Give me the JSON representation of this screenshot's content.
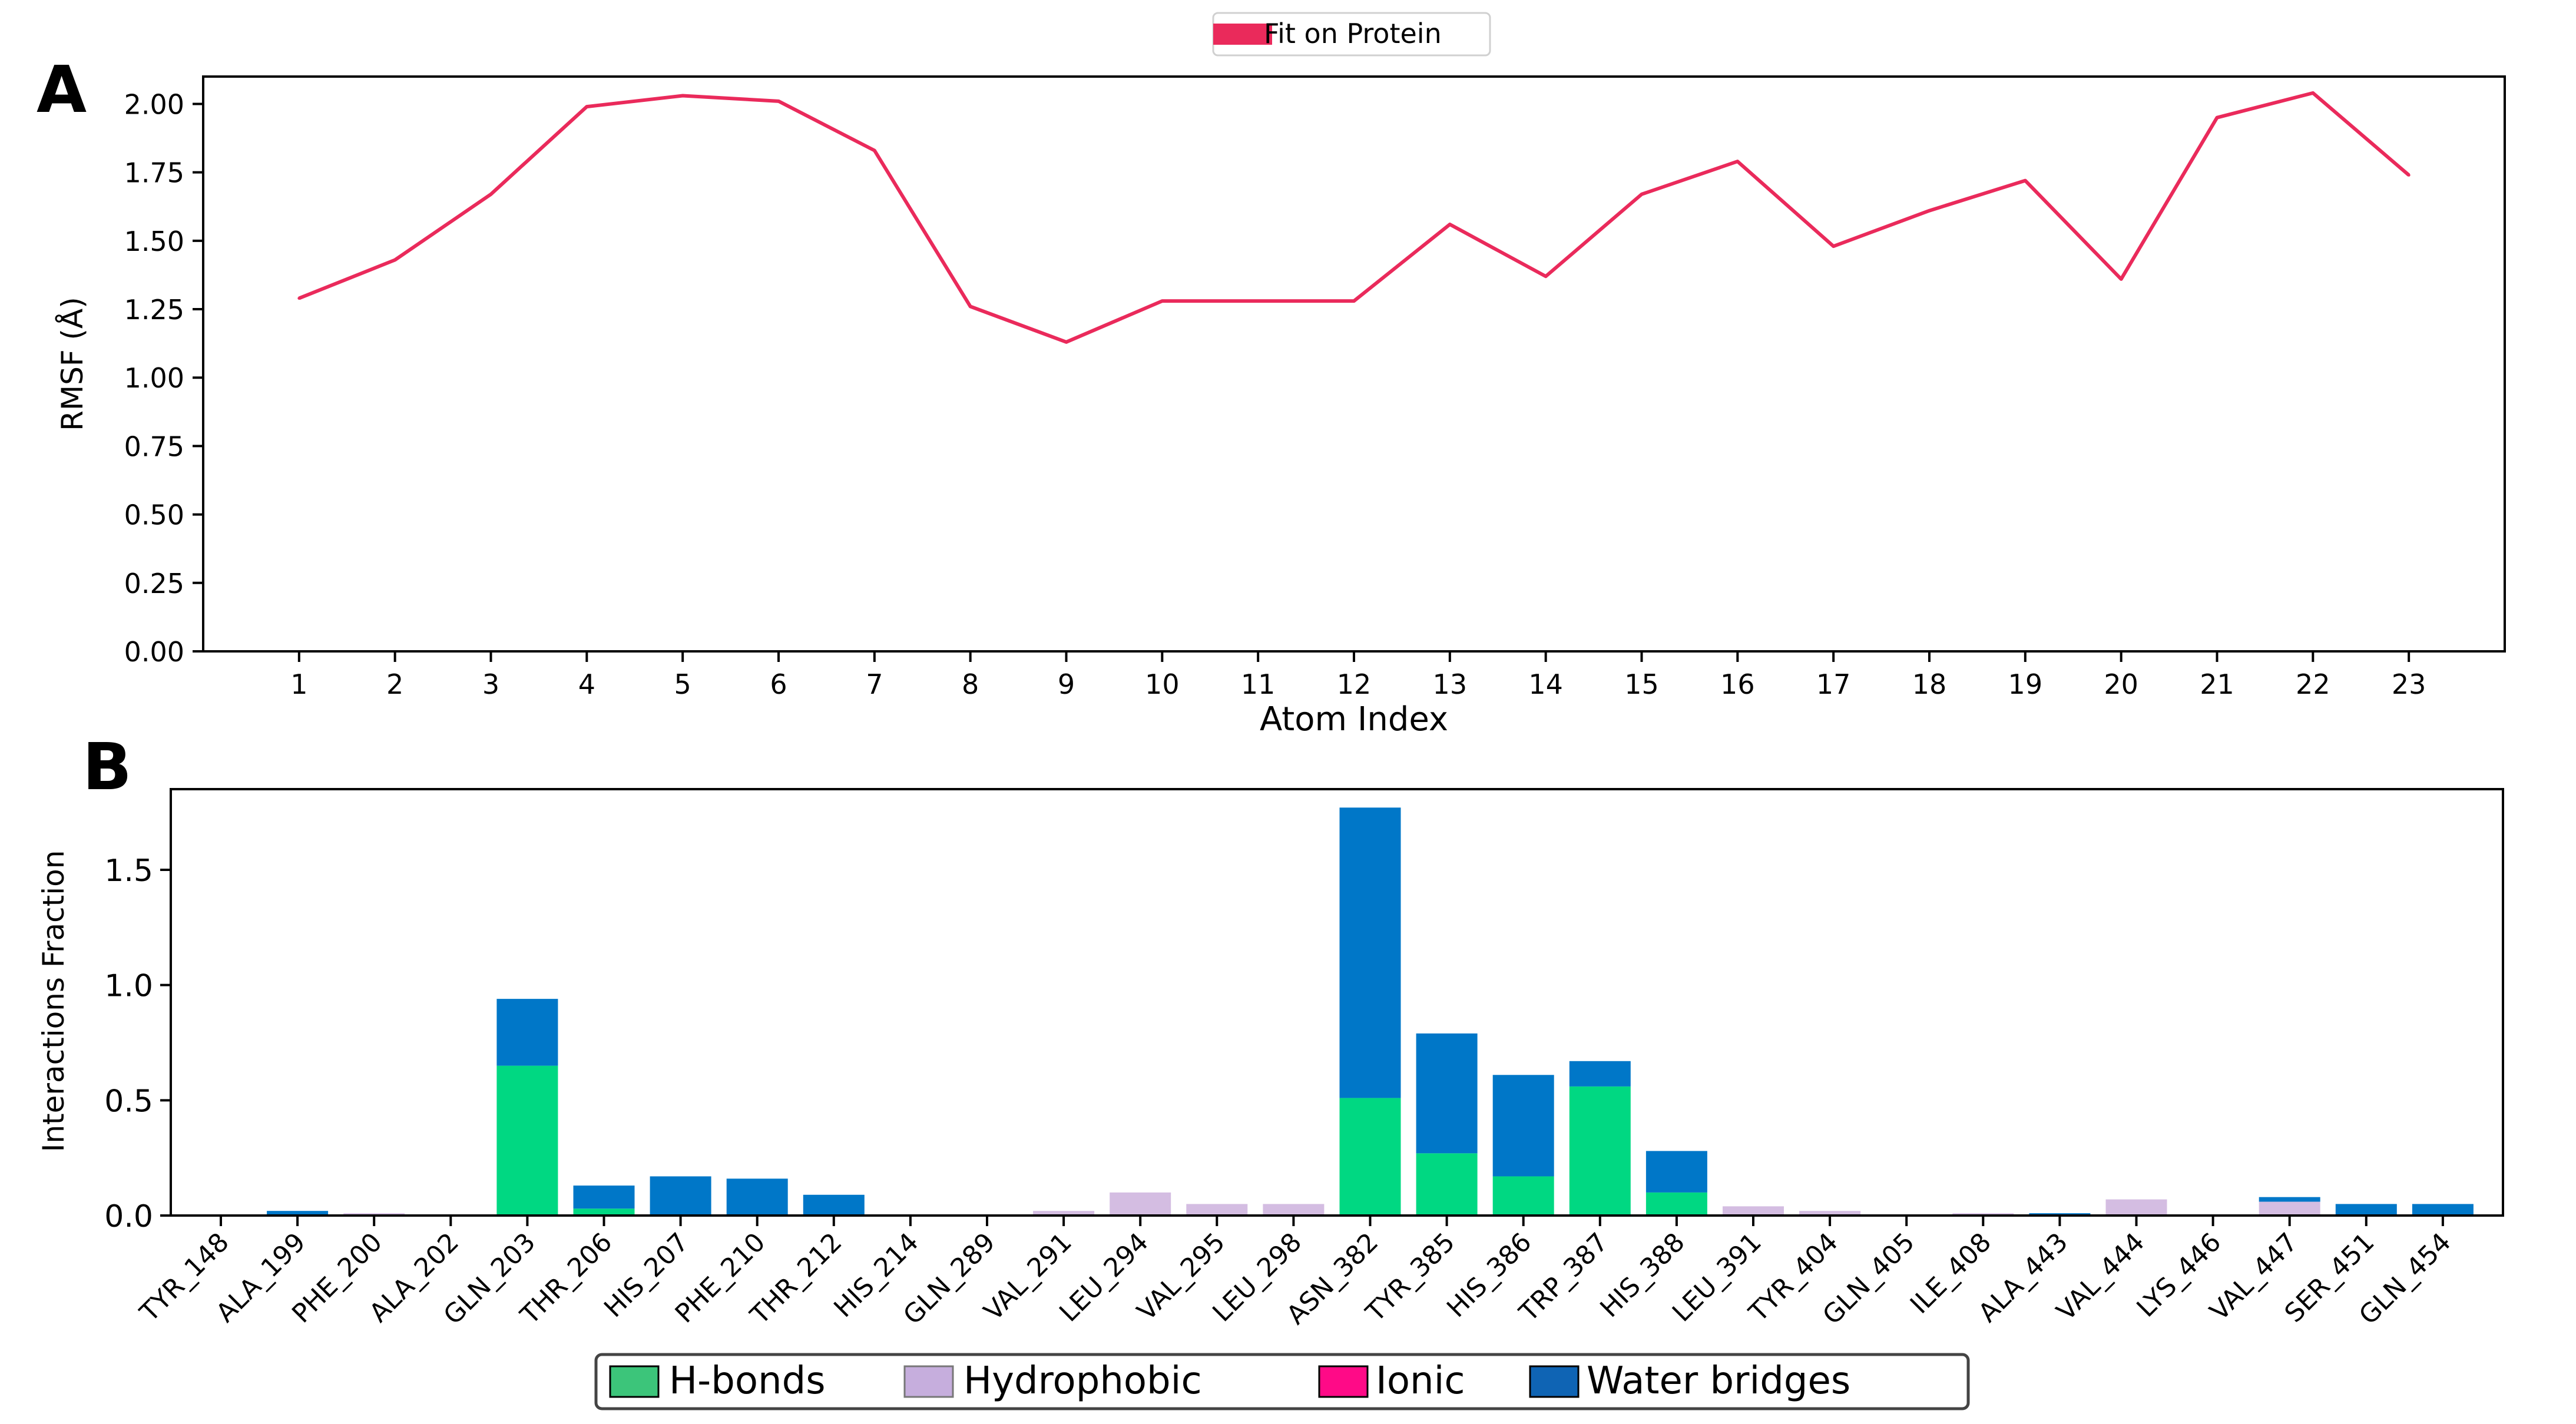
{
  "colors": {
    "fit_line": "#ea2a5b",
    "hbonds": "#00d882",
    "hydrophobic": "#d4bde2",
    "ionic": "#ff0a87",
    "water_bridges": "#0077c8",
    "legend_hbonds_swatch": "#3cc57a",
    "legend_hydrophobic_swatch": "#c6aedd",
    "legend_water_swatch": "#0f64b4"
  },
  "panel_a": {
    "letter": "A",
    "legend_label": "Fit on Protein",
    "xlabel": "Atom Index",
    "ylabel": "RMSF (Å)"
  },
  "panel_b": {
    "letter": "B",
    "ylabel": "Interactions Fraction",
    "legend": {
      "hbonds": "H-bonds",
      "hydrophobic": "Hydrophobic",
      "ionic": "Ionic",
      "water_bridges": "Water bridges"
    }
  },
  "chart_data": [
    {
      "type": "line",
      "title": "",
      "xlabel": "Atom Index",
      "ylabel": "RMSF (Å)",
      "x": [
        1,
        2,
        3,
        4,
        5,
        6,
        7,
        8,
        9,
        10,
        11,
        12,
        13,
        14,
        15,
        16,
        17,
        18,
        19,
        20,
        21,
        22,
        23
      ],
      "series": [
        {
          "name": "Fit on Protein",
          "values": [
            1.29,
            1.43,
            1.67,
            1.99,
            2.03,
            2.01,
            1.83,
            1.26,
            1.13,
            1.28,
            1.28,
            1.28,
            1.56,
            1.37,
            1.67,
            1.79,
            1.48,
            1.61,
            1.72,
            1.36,
            1.95,
            2.04,
            1.74
          ]
        }
      ],
      "xlim": [
        0.0,
        24.0
      ],
      "ylim": [
        0.0,
        2.1
      ],
      "yticks": [
        "0.00",
        "0.25",
        "0.50",
        "0.75",
        "1.00",
        "1.25",
        "1.50",
        "1.75",
        "2.00"
      ],
      "legend_position": "top-center"
    },
    {
      "type": "bar",
      "stacked": true,
      "title": "",
      "xlabel": "",
      "ylabel": "Interactions Fraction",
      "categories": [
        "TYR_148",
        "ALA_199",
        "PHE_200",
        "ALA_202",
        "GLN_203",
        "THR_206",
        "HIS_207",
        "PHE_210",
        "THR_212",
        "HIS_214",
        "GLN_289",
        "VAL_291",
        "LEU_294",
        "VAL_295",
        "LEU_298",
        "ASN_382",
        "TYR_385",
        "HIS_386",
        "TRP_387",
        "HIS_388",
        "LEU_391",
        "TYR_404",
        "GLN_405",
        "ILE_408",
        "ALA_443",
        "VAL_444",
        "LYS_446",
        "VAL_447",
        "SER_451",
        "GLN_454"
      ],
      "series": [
        {
          "name": "H-bonds",
          "values": [
            0,
            0,
            0,
            0,
            0.65,
            0.03,
            0,
            0,
            0,
            0,
            0,
            0,
            0,
            0,
            0,
            0.51,
            0.27,
            0.17,
            0.56,
            0.1,
            0,
            0,
            0,
            0,
            0,
            0,
            0,
            0,
            0,
            0
          ]
        },
        {
          "name": "Hydrophobic",
          "values": [
            0,
            0,
            0.01,
            0,
            0,
            0,
            0,
            0,
            0,
            0,
            0,
            0.02,
            0.1,
            0.05,
            0.05,
            0,
            0,
            0,
            0,
            0,
            0.04,
            0.02,
            0,
            0.01,
            0,
            0.07,
            0,
            0.06,
            0,
            0
          ]
        },
        {
          "name": "Ionic",
          "values": [
            0,
            0,
            0,
            0,
            0,
            0,
            0,
            0,
            0,
            0,
            0,
            0,
            0,
            0,
            0,
            0,
            0,
            0,
            0,
            0,
            0,
            0,
            0,
            0,
            0,
            0,
            0,
            0,
            0,
            0
          ]
        },
        {
          "name": "Water bridges",
          "values": [
            0,
            0.02,
            0,
            0,
            0.29,
            0.1,
            0.17,
            0.16,
            0.09,
            0,
            0,
            0,
            0,
            0,
            0,
            1.26,
            0.52,
            0.44,
            0.11,
            0.18,
            0,
            0,
            0,
            0,
            0.01,
            0,
            0,
            0.02,
            0.05,
            0.05
          ]
        }
      ],
      "ylim": [
        0.0,
        1.85
      ],
      "yticks": [
        "0.0",
        "0.5",
        "1.0",
        "1.5"
      ],
      "legend_position": "bottom-center"
    }
  ]
}
